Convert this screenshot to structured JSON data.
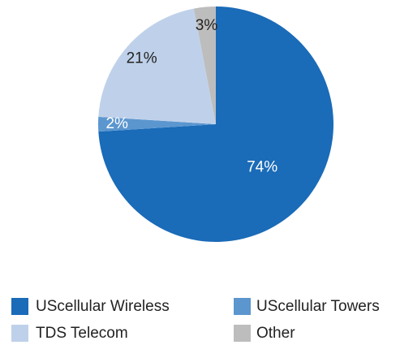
{
  "chart_data": {
    "type": "pie",
    "categories": [
      "UScellular Wireless",
      "UScellular Towers",
      "TDS Telecom",
      "Other"
    ],
    "values": [
      74,
      2,
      21,
      3
    ],
    "value_labels": [
      "74%",
      "2%",
      "21%",
      "3%"
    ],
    "colors": [
      "#1a6bb8",
      "#5b96cf",
      "#bfd1ea",
      "#bdbdbd"
    ],
    "legend": "bottom"
  }
}
